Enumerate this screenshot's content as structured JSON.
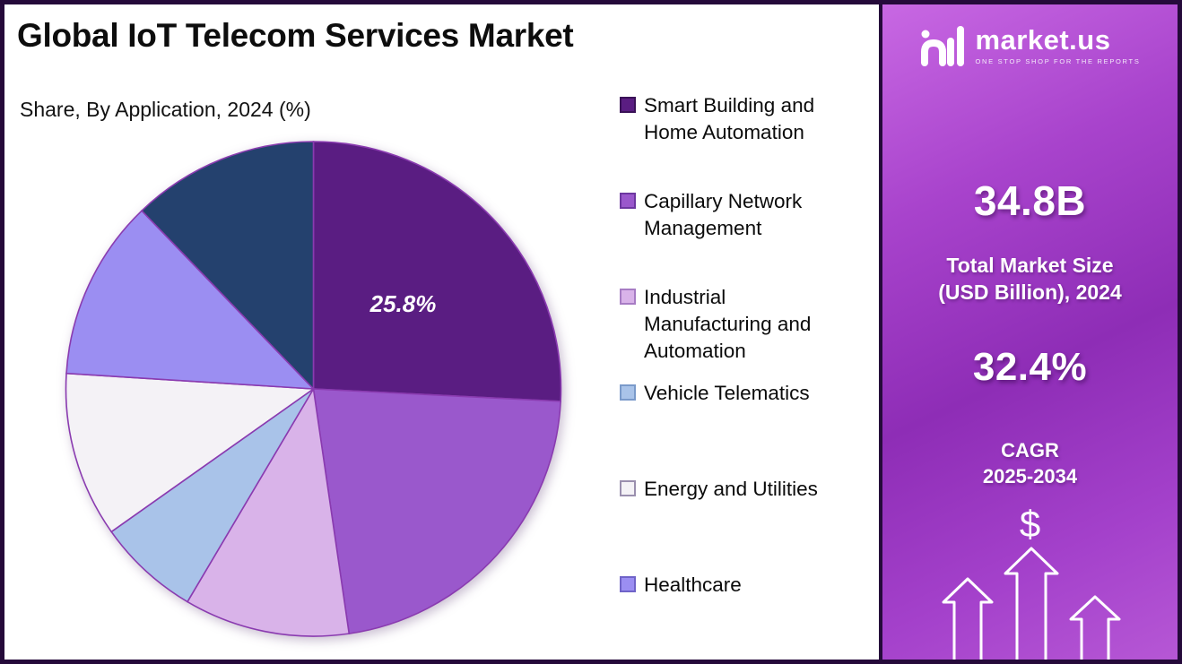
{
  "title": "Global IoT Telecom Services Market",
  "subtitle": "Share, By Application, 2024 (%)",
  "chart_data": {
    "type": "pie",
    "title": "Global IoT Telecom Services Market",
    "subtitle": "Share, By Application, 2024 (%)",
    "legend_position": "right-of-chart",
    "data_label": {
      "segment": "Smart Building and Home Automation",
      "text": "25.8%"
    },
    "slice_stroke": "#8a3bb0",
    "segments": [
      {
        "name": "Smart Building and Home Automation",
        "value": 25.8,
        "color": "#5a1d82",
        "swatch_border": "#3a1157",
        "in_legend": true
      },
      {
        "name": "Capillary Network Management",
        "value": 21.9,
        "color": "#9a58cc",
        "swatch_border": "#6d37a0",
        "in_legend": true
      },
      {
        "name": "Industrial Manufacturing and Automation",
        "value": 10.8,
        "color": "#d9b3e9",
        "swatch_border": "#a77cc4",
        "in_legend": true
      },
      {
        "name": "Vehicle Telematics",
        "value": 6.7,
        "color": "#a9c3e9",
        "swatch_border": "#7a9aca",
        "in_legend": true
      },
      {
        "name": "Energy and Utilities",
        "value": 10.8,
        "color": "#f4f2f6",
        "swatch_border": "#9a8fae",
        "in_legend": true
      },
      {
        "name": "Healthcare",
        "value": 11.8,
        "color": "#9b8ef2",
        "swatch_border": "#6f63c8",
        "in_legend": true
      },
      {
        "name": "",
        "value": 12.2,
        "color": "#24416e",
        "swatch_border": "#16294a",
        "in_legend": false
      }
    ]
  },
  "sidebar": {
    "logo": {
      "name": "market.us",
      "tagline": "ONE STOP SHOP FOR THE REPORTS"
    },
    "stats": {
      "market_size_value": "34.8B",
      "market_size_label_line1": "Total Market Size",
      "market_size_label_line2": "(USD Billion), 2024",
      "cagr_value": "32.4%",
      "cagr_label": "CAGR",
      "cagr_period": "2025-2034",
      "currency_symbol": "$"
    }
  }
}
